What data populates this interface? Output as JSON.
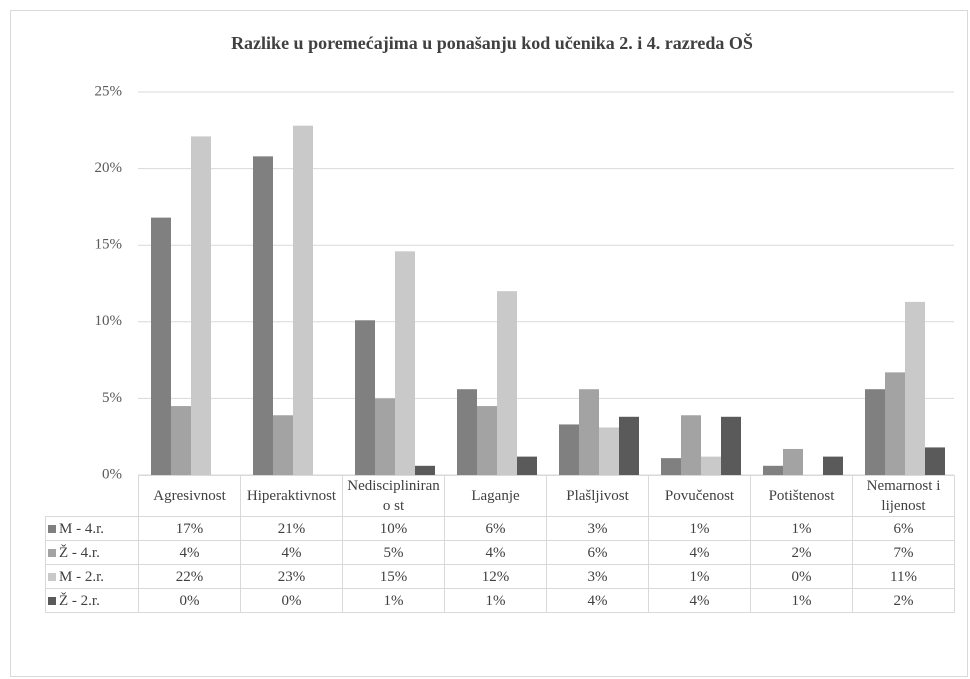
{
  "chart_data": {
    "type": "bar",
    "title": "Razlike u poremećajima u ponašanju kod učenika 2. i 4. razreda OŠ",
    "categories": [
      "Agresivnost",
      "Hiperaktivnost",
      "Nedisciplinirano st",
      "Laganje",
      "Plašljivost",
      "Povučenost",
      "Potištenost",
      "Nemarnost i lijenost"
    ],
    "series": [
      {
        "name": "M - 4.r.",
        "color": "#808080",
        "values": [
          16.8,
          20.8,
          10.1,
          5.6,
          3.3,
          1.1,
          0.6,
          5.6
        ],
        "value_labels": [
          "17%",
          "21%",
          "10%",
          "6%",
          "3%",
          "1%",
          "1%",
          "6%"
        ]
      },
      {
        "name": "Ž - 4.r.",
        "color": "#a3a3a3",
        "values": [
          4.5,
          3.9,
          5.0,
          4.5,
          5.6,
          3.9,
          1.7,
          6.7
        ],
        "value_labels": [
          "4%",
          "4%",
          "5%",
          "4%",
          "6%",
          "4%",
          "2%",
          "7%"
        ]
      },
      {
        "name": "M - 2.r.",
        "color": "#c9c9c9",
        "values": [
          22.1,
          22.8,
          14.6,
          12.0,
          3.1,
          1.2,
          0,
          11.3
        ],
        "value_labels": [
          "22%",
          "23%",
          "15%",
          "12%",
          "3%",
          "1%",
          "0%",
          "11%"
        ]
      },
      {
        "name": "Ž - 2.r.",
        "color": "#5a5a5a",
        "values": [
          0,
          0,
          0.6,
          1.2,
          3.8,
          3.8,
          1.2,
          1.8
        ],
        "value_labels": [
          "0%",
          "0%",
          "1%",
          "1%",
          "4%",
          "4%",
          "1%",
          "2%"
        ]
      }
    ],
    "ylim": [
      0,
      25
    ],
    "yticks": [
      {
        "value": 0,
        "label": "0%"
      },
      {
        "value": 5,
        "label": "5%"
      },
      {
        "value": 10,
        "label": "10%"
      },
      {
        "value": 15,
        "label": "15%"
      },
      {
        "value": 20,
        "label": "20%"
      },
      {
        "value": 25,
        "label": "25%"
      }
    ],
    "grid": true
  }
}
